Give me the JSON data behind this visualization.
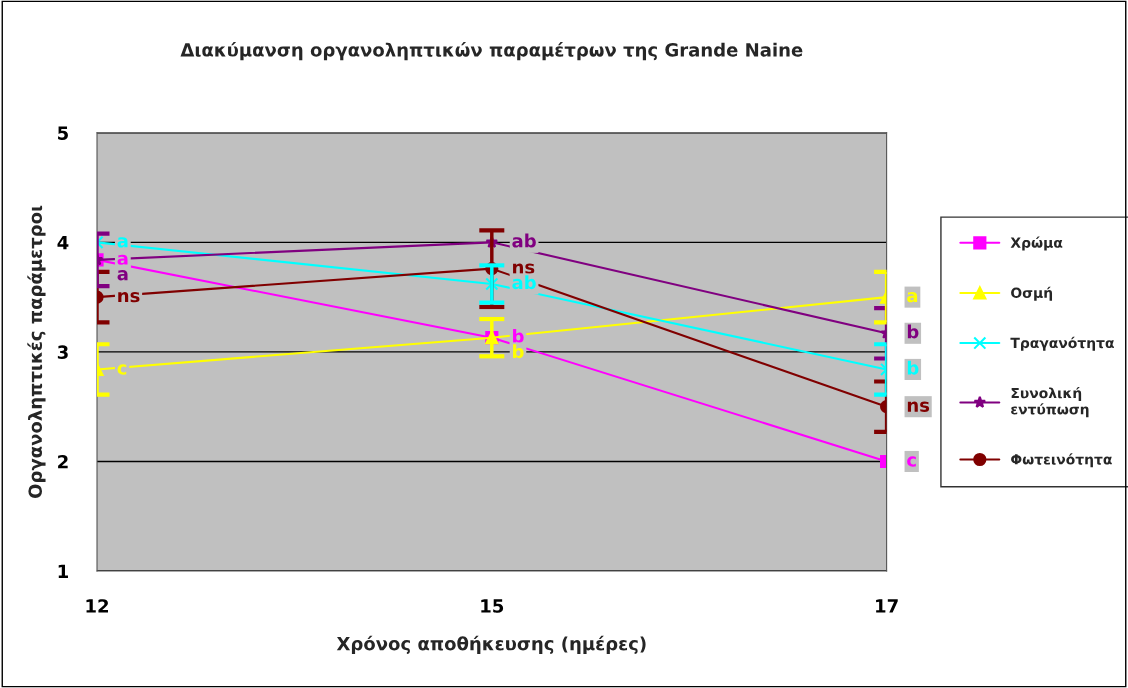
{
  "chart_data": {
    "type": "line",
    "title": "Διακύμανση οργανοληπτικών παραμέτρων της Grande Naine",
    "xlabel": "Χρόνος αποθήκευσης (ημέρες)",
    "ylabel": "Οργανοληπτικές παράμετροι",
    "categories": [
      "12",
      "15",
      "17"
    ],
    "series": [
      {
        "name": "Χρώμα",
        "color": "#ff00ff",
        "marker": "square",
        "values": [
          3.84,
          3.13,
          2.0
        ],
        "value_labels": [
          "a",
          "b",
          "c"
        ]
      },
      {
        "name": "Οσμή",
        "color": "#ffff00",
        "marker": "triangle",
        "values": [
          2.84,
          3.13,
          3.5
        ],
        "errors": [
          0.23,
          0.17,
          0.23
        ],
        "value_labels": [
          "c",
          "b",
          "a"
        ]
      },
      {
        "name": "Τραγανότητα",
        "color": "#00ffff",
        "marker": "cross",
        "values": [
          4.0,
          3.62,
          2.84
        ],
        "errors": [
          null,
          0.17,
          0.23
        ],
        "value_labels": [
          "a",
          "ab",
          "b"
        ]
      },
      {
        "name": "Συνολική εντύπωση",
        "color": "#800080",
        "marker": "star",
        "values": [
          3.84,
          4.0,
          3.17
        ],
        "errors": [
          0.24,
          null,
          0.23
        ],
        "value_labels": [
          "a",
          "ab",
          "b"
        ]
      },
      {
        "name": "Φωτεινότητα",
        "color": "#800000",
        "marker": "circle",
        "values": [
          3.5,
          3.76,
          2.5
        ],
        "errors": [
          0.23,
          0.35,
          0.23
        ],
        "value_labels": [
          "ns",
          "ns",
          "ns"
        ]
      }
    ],
    "ylim": [
      1,
      5
    ],
    "yticks": [
      1,
      2,
      3,
      4,
      5
    ],
    "grid": "y",
    "legend": "right",
    "line_style": "solid"
  }
}
